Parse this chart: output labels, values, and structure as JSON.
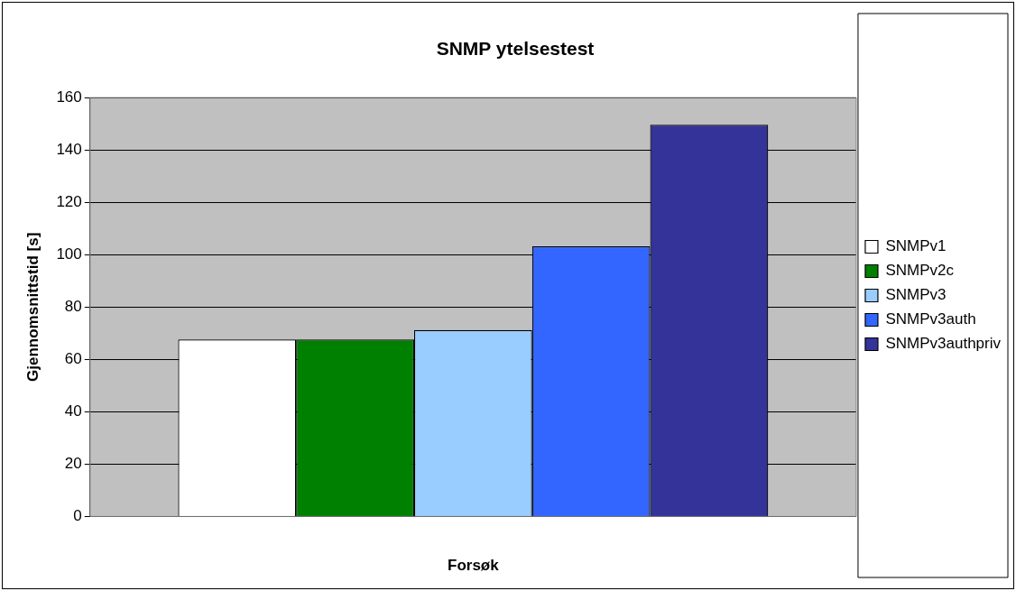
{
  "chart_data": {
    "type": "bar",
    "title": "SNMP ytelsestest",
    "xlabel": "Forsøk",
    "ylabel": "Gjennomsnittstid [s]",
    "categories": [
      null
    ],
    "series": [
      {
        "name": "SNMPv1",
        "color": "#ffffff",
        "values": [
          67.6
        ]
      },
      {
        "name": "SNMPv2c",
        "color": "#008000",
        "values": [
          67.6
        ]
      },
      {
        "name": "SNMPv3",
        "color": "#99ccff",
        "values": [
          71.2
        ]
      },
      {
        "name": "SNMPv3auth",
        "color": "#3366ff",
        "values": [
          103.2
        ]
      },
      {
        "name": "SNMPv3authpriv",
        "color": "#333399",
        "values": [
          149.6
        ]
      }
    ],
    "ylim": [
      0,
      160
    ],
    "yticks": [
      0,
      20,
      40,
      60,
      80,
      100,
      120,
      140,
      160
    ],
    "grid": "y",
    "legend": "right"
  }
}
